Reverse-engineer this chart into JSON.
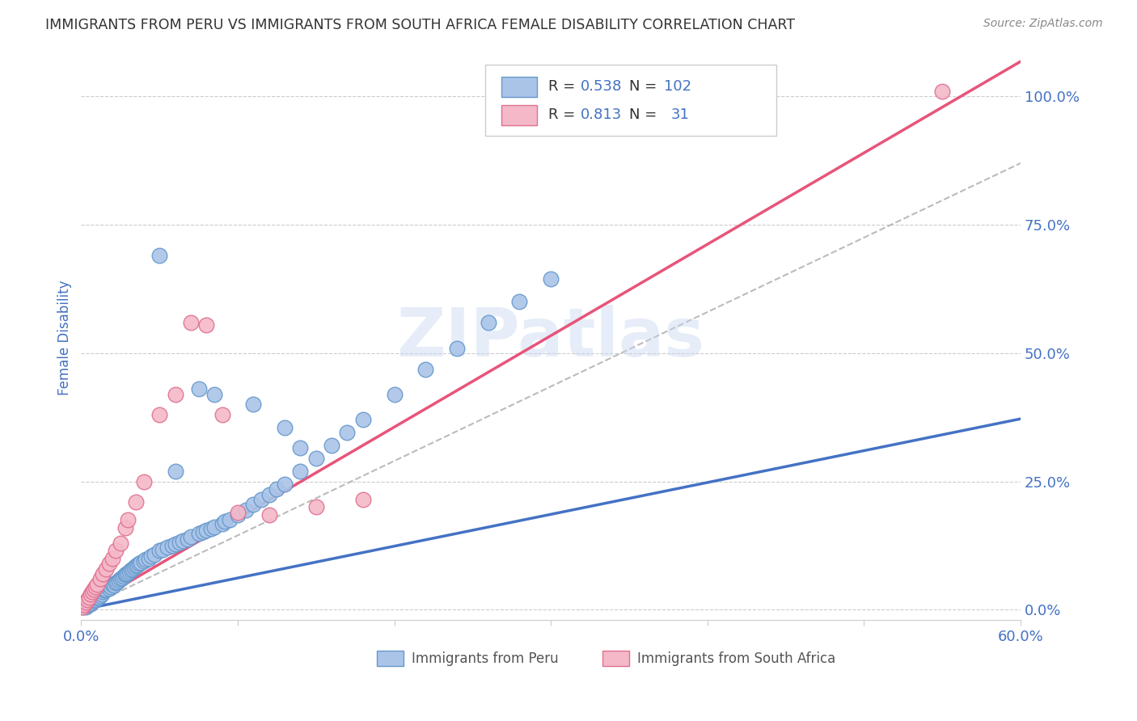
{
  "title": "IMMIGRANTS FROM PERU VS IMMIGRANTS FROM SOUTH AFRICA FEMALE DISABILITY CORRELATION CHART",
  "source": "Source: ZipAtlas.com",
  "ylabel": "Female Disability",
  "xlim": [
    0.0,
    0.6
  ],
  "ylim": [
    -0.02,
    1.08
  ],
  "xtick_vals": [
    0.0,
    0.1,
    0.2,
    0.3,
    0.4,
    0.5,
    0.6
  ],
  "xtick_labels_show": {
    "0.0": "0.0%",
    "0.6": "60.0%"
  },
  "ytick_vals": [
    0.0,
    0.25,
    0.5,
    0.75,
    1.0
  ],
  "ytick_labels": [
    "0.0%",
    "25.0%",
    "50.0%",
    "75.0%",
    "100.0%"
  ],
  "peru_color": "#aac4e8",
  "peru_edge": "#6699cc",
  "sa_color": "#f4b8c8",
  "sa_edge": "#e07090",
  "peru_R": 0.538,
  "peru_N": 102,
  "sa_R": 0.813,
  "sa_N": 31,
  "watermark": "ZIPatlas",
  "legend_n_color": "#4472c4",
  "title_color": "#333333",
  "axis_label_color": "#4472c4",
  "grid_color": "#cccccc",
  "trendline_peru_color": "#4472c4",
  "trendline_sa_color": "#e8547a",
  "trendline_ref_color": "#aaaaaa",
  "peru_trend_slope": 0.62,
  "peru_trend_intercept": 0.0,
  "sa_trend_slope": 1.78,
  "sa_trend_intercept": 0.0,
  "ref_slope": 1.45,
  "ref_intercept": 0.0,
  "peru_x": [
    0.001,
    0.002,
    0.002,
    0.003,
    0.003,
    0.003,
    0.004,
    0.004,
    0.004,
    0.005,
    0.005,
    0.005,
    0.006,
    0.006,
    0.007,
    0.007,
    0.008,
    0.008,
    0.009,
    0.009,
    0.01,
    0.01,
    0.011,
    0.011,
    0.012,
    0.012,
    0.013,
    0.014,
    0.014,
    0.015,
    0.015,
    0.016,
    0.017,
    0.018,
    0.018,
    0.019,
    0.02,
    0.021,
    0.022,
    0.023,
    0.024,
    0.025,
    0.026,
    0.027,
    0.028,
    0.029,
    0.03,
    0.031,
    0.032,
    0.033,
    0.034,
    0.035,
    0.036,
    0.037,
    0.038,
    0.04,
    0.041,
    0.043,
    0.045,
    0.047,
    0.05,
    0.052,
    0.055,
    0.058,
    0.06,
    0.063,
    0.065,
    0.068,
    0.07,
    0.075,
    0.078,
    0.08,
    0.083,
    0.085,
    0.09,
    0.092,
    0.095,
    0.1,
    0.105,
    0.11,
    0.115,
    0.12,
    0.125,
    0.13,
    0.14,
    0.15,
    0.16,
    0.17,
    0.18,
    0.2,
    0.22,
    0.24,
    0.26,
    0.28,
    0.3,
    0.06,
    0.075,
    0.085,
    0.05,
    0.11,
    0.13,
    0.14
  ],
  "peru_y": [
    0.005,
    0.008,
    0.012,
    0.006,
    0.01,
    0.015,
    0.008,
    0.012,
    0.018,
    0.01,
    0.015,
    0.02,
    0.012,
    0.018,
    0.015,
    0.022,
    0.018,
    0.025,
    0.02,
    0.028,
    0.022,
    0.03,
    0.025,
    0.032,
    0.028,
    0.035,
    0.03,
    0.035,
    0.04,
    0.038,
    0.042,
    0.04,
    0.045,
    0.042,
    0.048,
    0.045,
    0.05,
    0.048,
    0.052,
    0.055,
    0.058,
    0.06,
    0.062,
    0.065,
    0.068,
    0.07,
    0.072,
    0.075,
    0.078,
    0.08,
    0.082,
    0.085,
    0.088,
    0.09,
    0.092,
    0.095,
    0.098,
    0.1,
    0.105,
    0.108,
    0.115,
    0.118,
    0.122,
    0.125,
    0.128,
    0.132,
    0.135,
    0.138,
    0.142,
    0.148,
    0.152,
    0.155,
    0.158,
    0.162,
    0.168,
    0.172,
    0.175,
    0.185,
    0.195,
    0.205,
    0.215,
    0.225,
    0.235,
    0.245,
    0.27,
    0.295,
    0.32,
    0.345,
    0.37,
    0.42,
    0.468,
    0.51,
    0.56,
    0.6,
    0.645,
    0.27,
    0.43,
    0.42,
    0.69,
    0.4,
    0.355,
    0.315
  ],
  "sa_x": [
    0.001,
    0.002,
    0.003,
    0.004,
    0.005,
    0.006,
    0.007,
    0.008,
    0.009,
    0.01,
    0.012,
    0.014,
    0.016,
    0.018,
    0.02,
    0.022,
    0.025,
    0.028,
    0.03,
    0.035,
    0.04,
    0.05,
    0.06,
    0.07,
    0.08,
    0.09,
    0.1,
    0.12,
    0.15,
    0.18,
    0.55
  ],
  "sa_y": [
    0.005,
    0.01,
    0.015,
    0.02,
    0.025,
    0.03,
    0.035,
    0.04,
    0.045,
    0.05,
    0.06,
    0.07,
    0.08,
    0.09,
    0.1,
    0.115,
    0.13,
    0.16,
    0.175,
    0.21,
    0.25,
    0.38,
    0.42,
    0.56,
    0.555,
    0.38,
    0.19,
    0.185,
    0.2,
    0.215,
    1.01
  ]
}
